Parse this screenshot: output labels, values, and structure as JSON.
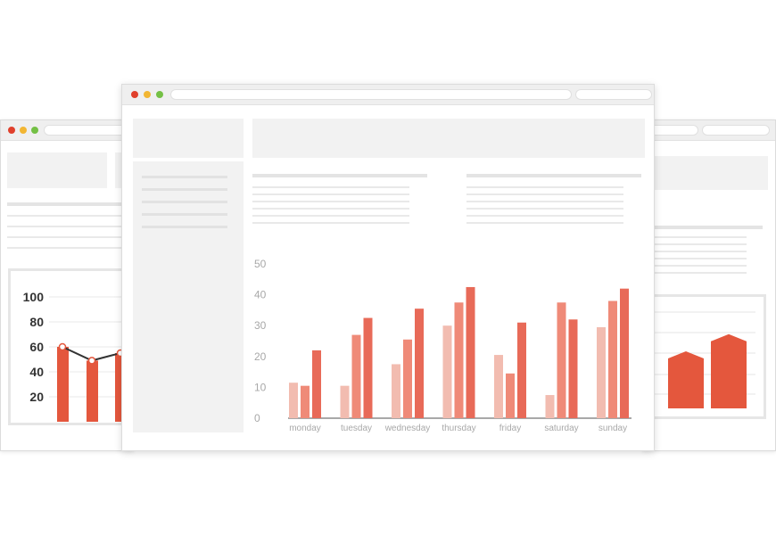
{
  "colors": {
    "bar_light": "#f2bcb0",
    "bar_mid": "#ef8a78",
    "bar_dark": "#e86a58",
    "left_bar": "#e4573d",
    "right_shape": "#e4573d",
    "axis_text": "#a8a8a8",
    "left_axis_text": "#333333"
  },
  "chart_data": [
    {
      "type": "bar",
      "categories": [
        "monday",
        "tuesday",
        "wednesday",
        "thursday",
        "friday",
        "saturday",
        "sunday"
      ],
      "series": [
        {
          "values": [
            11.5,
            10.5,
            17.5,
            30,
            20.5,
            7.5,
            29.5
          ]
        },
        {
          "values": [
            10.5,
            27,
            25.5,
            37.5,
            14.5,
            37.5,
            38
          ]
        },
        {
          "values": [
            22,
            32.5,
            35.5,
            42.5,
            31,
            32,
            42
          ]
        }
      ],
      "yticks": [
        0,
        10,
        20,
        30,
        40,
        50
      ],
      "ylim": [
        0,
        50
      ]
    },
    {
      "type": "line",
      "yticks": [
        20,
        40,
        60,
        80,
        100
      ],
      "ylim": [
        0,
        110
      ],
      "bars": [
        60,
        49,
        55
      ],
      "line": [
        60,
        49,
        55
      ]
    },
    {
      "type": "area",
      "values": [
        20,
        40,
        52
      ]
    }
  ]
}
